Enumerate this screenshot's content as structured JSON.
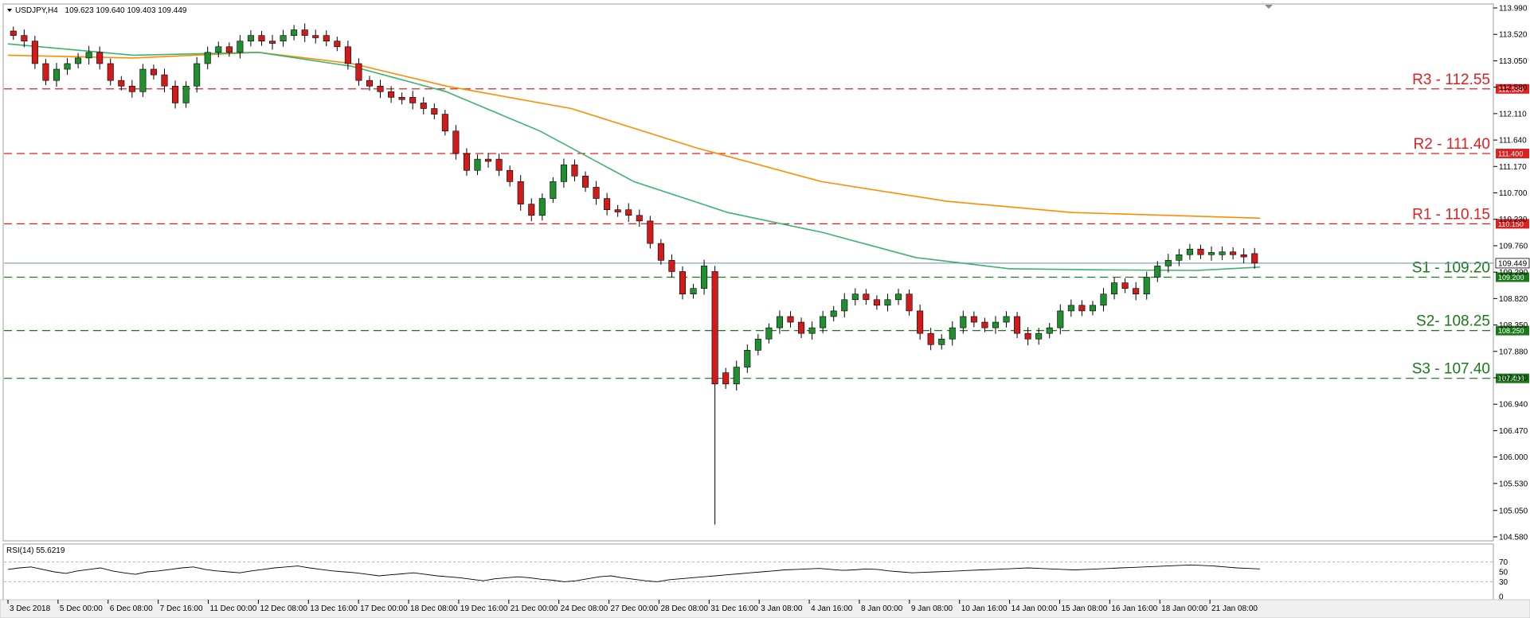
{
  "header": {
    "symbol": "USDJPY,H4",
    "ohlc": "109.623 109.640 109.403 109.449"
  },
  "rsi_header": "RSI(14) 55.6219",
  "colors": {
    "bull": "#1f8f2f",
    "bear": "#d11a1a",
    "ma_fast": "#3cb371",
    "ma_slow": "#ff8c00",
    "resistance": "#e02020",
    "support": "#1a7a1a",
    "price_line": "#6a8ca8"
  },
  "chart_data": [
    {
      "type": "candlestick",
      "title": "",
      "ylim": [
        104.58,
        113.99
      ],
      "y_ticks": [
        "113.990",
        "113.520",
        "113.050",
        "112.580",
        "112.110",
        "111.640",
        "111.170",
        "110.700",
        "110.230",
        "109.760",
        "109.290",
        "108.820",
        "108.350",
        "107.880",
        "107.410",
        "106.940",
        "106.470",
        "106.000",
        "105.530",
        "105.050",
        "104.580"
      ],
      "x_ticks": [
        "3 Dec 2018",
        "5 Dec 00:00",
        "6 Dec 08:00",
        "7 Dec 16:00",
        "11 Dec 00:00",
        "12 Dec 08:00",
        "13 Dec 16:00",
        "17 Dec 00:00",
        "18 Dec 08:00",
        "19 Dec 16:00",
        "21 Dec 00:00",
        "24 Dec 08:00",
        "27 Dec 00:00",
        "28 Dec 08:00",
        "31 Dec 16:00",
        "3 Jan 08:00",
        "4 Jan 16:00",
        "8 Jan 00:00",
        "9 Jan 08:00",
        "10 Jan 16:00",
        "14 Jan 00:00",
        "15 Jan 08:00",
        "16 Jan 16:00",
        "18 Jan 00:00",
        "21 Jan 08:00"
      ],
      "levels": [
        {
          "label": "R3 - 112.55",
          "tag": "112.550",
          "value": 112.55,
          "kind": "resistance"
        },
        {
          "label": "R2 - 111.40",
          "tag": "111.400",
          "value": 111.4,
          "kind": "resistance"
        },
        {
          "label": "R1 - 110.15",
          "tag": "110.150",
          "value": 110.15,
          "kind": "resistance"
        },
        {
          "label": "S1 - 109.20",
          "tag": "109.200",
          "value": 109.2,
          "kind": "support"
        },
        {
          "label": "S2- 108.25",
          "tag": "108.250",
          "value": 108.25,
          "kind": "support"
        },
        {
          "label": "S3 - 107.40",
          "tag": "107.400",
          "value": 107.4,
          "kind": "support"
        }
      ],
      "current_price": {
        "tag": "109.449",
        "value": 109.449
      },
      "close_path": [
        113.5,
        113.4,
        113.0,
        112.7,
        112.9,
        113.0,
        113.1,
        113.2,
        113.0,
        112.7,
        112.6,
        112.5,
        112.9,
        112.8,
        112.6,
        112.3,
        112.6,
        113.0,
        113.2,
        113.3,
        113.2,
        113.4,
        113.5,
        113.4,
        113.4,
        113.5,
        113.6,
        113.5,
        113.5,
        113.4,
        113.3,
        113.0,
        112.7,
        112.6,
        112.5,
        112.4,
        112.4,
        112.3,
        112.2,
        112.1,
        111.8,
        111.4,
        111.1,
        111.3,
        111.3,
        111.1,
        110.9,
        110.5,
        110.3,
        110.6,
        110.9,
        111.2,
        111.0,
        110.8,
        110.6,
        110.4,
        110.4,
        110.3,
        110.2,
        109.8,
        109.5,
        109.3,
        108.9,
        109.0,
        109.4,
        107.5,
        107.3,
        107.6,
        107.9,
        108.1,
        108.3,
        108.5,
        108.4,
        108.2,
        108.3,
        108.5,
        108.6,
        108.8,
        108.9,
        108.8,
        108.7,
        108.8,
        108.9,
        108.6,
        108.2,
        108.0,
        108.1,
        108.3,
        108.5,
        108.4,
        108.3,
        108.4,
        108.5,
        108.2,
        108.1,
        108.2,
        108.3,
        108.6,
        108.7,
        108.6,
        108.7,
        108.9,
        109.1,
        109.0,
        108.9,
        109.2,
        109.4,
        109.5,
        109.6,
        109.7,
        109.6,
        109.6,
        109.65,
        109.6,
        109.62,
        109.45
      ],
      "candle_range": [
        0.13,
        0.2
      ],
      "gap_candle": {
        "open": 109.3,
        "close": 107.3,
        "high": 109.4,
        "low": 104.8
      },
      "ma_fast": [
        [
          0,
          113.35
        ],
        [
          20,
          113.15
        ],
        [
          40,
          113.2
        ],
        [
          55,
          112.95
        ],
        [
          70,
          112.5
        ],
        [
          85,
          111.8
        ],
        [
          100,
          110.9
        ],
        [
          115,
          110.35
        ],
        [
          130,
          110.0
        ],
        [
          145,
          109.55
        ],
        [
          160,
          109.35
        ],
        [
          175,
          109.33
        ],
        [
          190,
          109.32
        ],
        [
          200,
          109.38
        ]
      ],
      "ma_slow": [
        [
          0,
          113.15
        ],
        [
          20,
          113.1
        ],
        [
          40,
          113.2
        ],
        [
          55,
          113.0
        ],
        [
          70,
          112.6
        ],
        [
          90,
          112.2
        ],
        [
          110,
          111.5
        ],
        [
          130,
          110.9
        ],
        [
          150,
          110.55
        ],
        [
          170,
          110.35
        ],
        [
          200,
          110.25
        ]
      ]
    },
    {
      "type": "line",
      "title": "",
      "ylim": [
        0,
        100
      ],
      "y_ticks": [
        "70",
        "50",
        "30",
        "0"
      ],
      "y_tick_values": [
        70,
        50,
        30,
        0
      ],
      "values": [
        55,
        58,
        60,
        55,
        50,
        47,
        52,
        55,
        58,
        52,
        48,
        45,
        50,
        52,
        55,
        58,
        60,
        55,
        52,
        50,
        48,
        52,
        55,
        58,
        60,
        62,
        58,
        55,
        52,
        50,
        48,
        45,
        42,
        44,
        46,
        48,
        45,
        42,
        40,
        38,
        35,
        32,
        36,
        38,
        40,
        38,
        35,
        33,
        30,
        32,
        36,
        40,
        42,
        38,
        35,
        32,
        30,
        34,
        36,
        38,
        40,
        42,
        44,
        46,
        48,
        50,
        52,
        54,
        55,
        56,
        57,
        55,
        53,
        54,
        56,
        55,
        52,
        50,
        48,
        49,
        50,
        51,
        52,
        53,
        54,
        55,
        56,
        57,
        58,
        57,
        56,
        55,
        54,
        55,
        56,
        57,
        58,
        59,
        60,
        61,
        62,
        63,
        64,
        63,
        62,
        60,
        58,
        57,
        56
      ]
    }
  ]
}
